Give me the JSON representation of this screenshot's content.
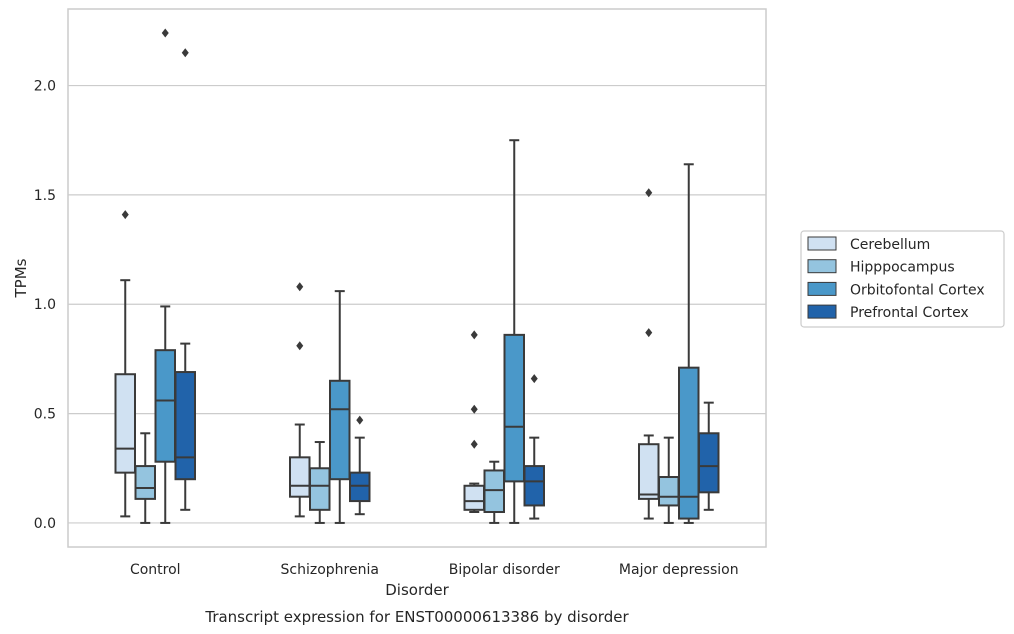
{
  "chart_data": {
    "type": "box",
    "title": "Transcript expression for ENST00000613386 by disorder",
    "xlabel": "Disorder",
    "ylabel": "TPMs",
    "ylim": [
      -0.11,
      2.35
    ],
    "yticks": [
      "0.0",
      "0.5",
      "1.0",
      "1.5",
      "2.0"
    ],
    "grid": true,
    "legend_position": "right",
    "categories": [
      "Control",
      "Schizophrenia",
      "Bipolar disorder",
      "Major depression"
    ],
    "series": [
      {
        "name": "Cerebellum",
        "color": "#d0e1f2",
        "boxes": [
          {
            "whislo": 0.03,
            "q1": 0.23,
            "med": 0.34,
            "q3": 0.68,
            "whishi": 1.11,
            "fliers": [
              1.41
            ]
          },
          {
            "whislo": 0.03,
            "q1": 0.12,
            "med": 0.17,
            "q3": 0.3,
            "whishi": 0.45,
            "fliers": [
              0.81,
              1.08
            ]
          },
          {
            "whislo": 0.05,
            "q1": 0.06,
            "med": 0.1,
            "q3": 0.17,
            "whishi": 0.18,
            "fliers": [
              0.36,
              0.52,
              0.86
            ]
          },
          {
            "whislo": 0.02,
            "q1": 0.11,
            "med": 0.13,
            "q3": 0.36,
            "whishi": 0.4,
            "fliers": [
              0.87,
              1.51
            ]
          }
        ]
      },
      {
        "name": "Hipppocampus",
        "color": "#94c4df",
        "boxes": [
          {
            "whislo": 0.0,
            "q1": 0.11,
            "med": 0.16,
            "q3": 0.26,
            "whishi": 0.41,
            "fliers": []
          },
          {
            "whislo": 0.0,
            "q1": 0.06,
            "med": 0.17,
            "q3": 0.25,
            "whishi": 0.37,
            "fliers": []
          },
          {
            "whislo": 0.0,
            "q1": 0.05,
            "med": 0.15,
            "q3": 0.24,
            "whishi": 0.28,
            "fliers": []
          },
          {
            "whislo": 0.0,
            "q1": 0.08,
            "med": 0.12,
            "q3": 0.21,
            "whishi": 0.39,
            "fliers": []
          }
        ]
      },
      {
        "name": "Orbitofontal Cortex",
        "color": "#4a98c9",
        "boxes": [
          {
            "whislo": 0.0,
            "q1": 0.28,
            "med": 0.56,
            "q3": 0.79,
            "whishi": 0.99,
            "fliers": [
              2.24
            ]
          },
          {
            "whislo": 0.0,
            "q1": 0.2,
            "med": 0.52,
            "q3": 0.65,
            "whishi": 1.06,
            "fliers": []
          },
          {
            "whislo": 0.0,
            "q1": 0.19,
            "med": 0.44,
            "q3": 0.86,
            "whishi": 1.75,
            "fliers": []
          },
          {
            "whislo": 0.0,
            "q1": 0.02,
            "med": 0.12,
            "q3": 0.71,
            "whishi": 1.64,
            "fliers": []
          }
        ]
      },
      {
        "name": "Prefrontal Cortex",
        "color": "#2163aa",
        "boxes": [
          {
            "whislo": 0.06,
            "q1": 0.2,
            "med": 0.3,
            "q3": 0.69,
            "whishi": 0.82,
            "fliers": [
              2.15
            ]
          },
          {
            "whislo": 0.04,
            "q1": 0.1,
            "med": 0.17,
            "q3": 0.23,
            "whishi": 0.39,
            "fliers": [
              0.47
            ]
          },
          {
            "whislo": 0.02,
            "q1": 0.08,
            "med": 0.19,
            "q3": 0.26,
            "whishi": 0.39,
            "fliers": [
              0.66
            ]
          },
          {
            "whislo": 0.06,
            "q1": 0.14,
            "med": 0.26,
            "q3": 0.41,
            "whishi": 0.55,
            "fliers": []
          }
        ]
      }
    ]
  },
  "colors": {
    "line": "#3a3a3a",
    "grid": "#cccccc",
    "frame": "#cccccc",
    "text": "#262626"
  }
}
